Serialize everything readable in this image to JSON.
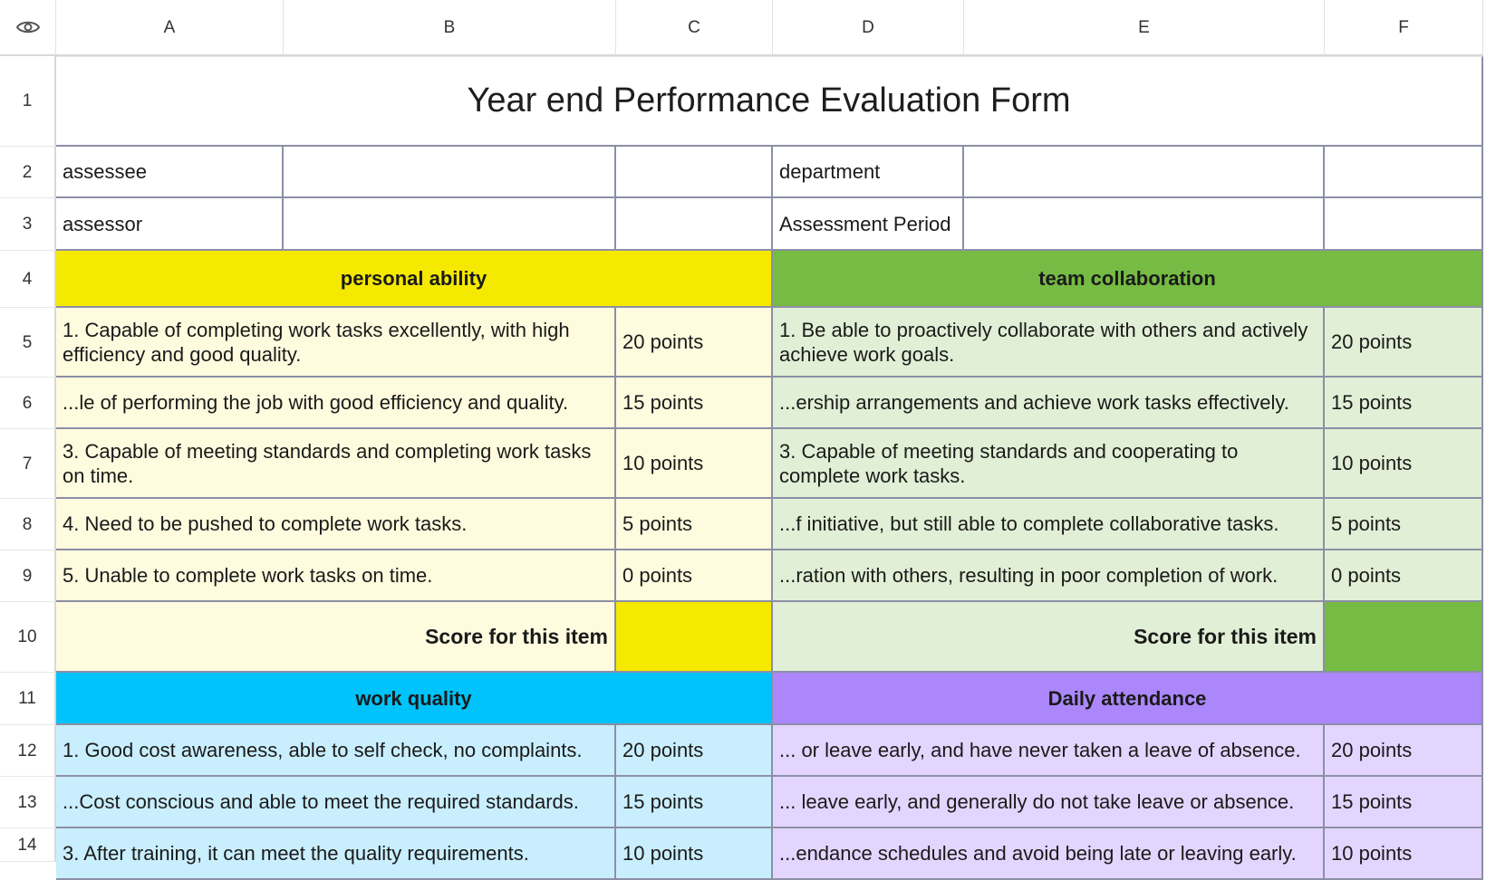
{
  "columns": [
    "A",
    "B",
    "C",
    "D",
    "E",
    "F"
  ],
  "rows": [
    "1",
    "2",
    "3",
    "4",
    "5",
    "6",
    "7",
    "8",
    "9",
    "10",
    "11",
    "12",
    "13",
    "14"
  ],
  "title": "Year end Performance Evaluation Form",
  "info": {
    "assessee": "assessee",
    "assessor": "assessor",
    "department": "department",
    "period": "Assessment Period"
  },
  "personal_ability": {
    "header": "personal ability",
    "items": [
      {
        "text": "1. Capable of completing work tasks excellently, with high efficiency and good quality.",
        "points": "20 points"
      },
      {
        "text": "...le of performing the job with good efficiency and quality.",
        "points": "15 points"
      },
      {
        "text": "3. Capable of meeting standards and completing work tasks on time.",
        "points": "10 points"
      },
      {
        "text": "4. Need to be pushed to complete work tasks.",
        "points": "5 points"
      },
      {
        "text": "5. Unable to complete work tasks on time.",
        "points": "0 points"
      }
    ],
    "score_label": "Score for this item"
  },
  "team_collaboration": {
    "header": "team collaboration",
    "items": [
      {
        "text": "1. Be able to proactively collaborate with others and actively achieve work goals.",
        "points": "20 points"
      },
      {
        "text": "...ership arrangements and achieve work tasks effectively.",
        "points": "15 points"
      },
      {
        "text": "3. Capable of meeting standards and cooperating to complete work tasks.",
        "points": "10 points"
      },
      {
        "text": "...f initiative, but still able to complete collaborative tasks.",
        "points": "5 points"
      },
      {
        "text": "...ration with others, resulting in poor completion of work.",
        "points": "0 points"
      }
    ],
    "score_label": "Score for this item"
  },
  "work_quality": {
    "header": "work quality",
    "items": [
      {
        "text": "1. Good cost awareness, able to self check, no complaints.",
        "points": "20 points"
      },
      {
        "text": "...Cost conscious and able to meet the required standards.",
        "points": "15 points"
      },
      {
        "text": "3. After training, it can meet the quality requirements.",
        "points": "10 points"
      }
    ]
  },
  "daily_attendance": {
    "header": "Daily attendance",
    "items": [
      {
        "text": "... or leave early, and have never taken a leave of absence.",
        "points": "20 points"
      },
      {
        "text": "... leave early, and generally do not take leave or absence.",
        "points": "15 points"
      },
      {
        "text": "...endance schedules and avoid being late or leaving early.",
        "points": "10 points"
      }
    ]
  },
  "icons": {
    "corner": "eye-icon"
  },
  "colors": {
    "yellow_header": "#f5e900",
    "yellow_light": "#fffbde",
    "green_header": "#76bb43",
    "green_light": "#e0efd5",
    "blue_header": "#00c3fb",
    "blue_light": "#c9eefd",
    "purple_header": "#ab87fb",
    "purple_light": "#e3d5fd",
    "grid_border": "#8c8fa6"
  }
}
